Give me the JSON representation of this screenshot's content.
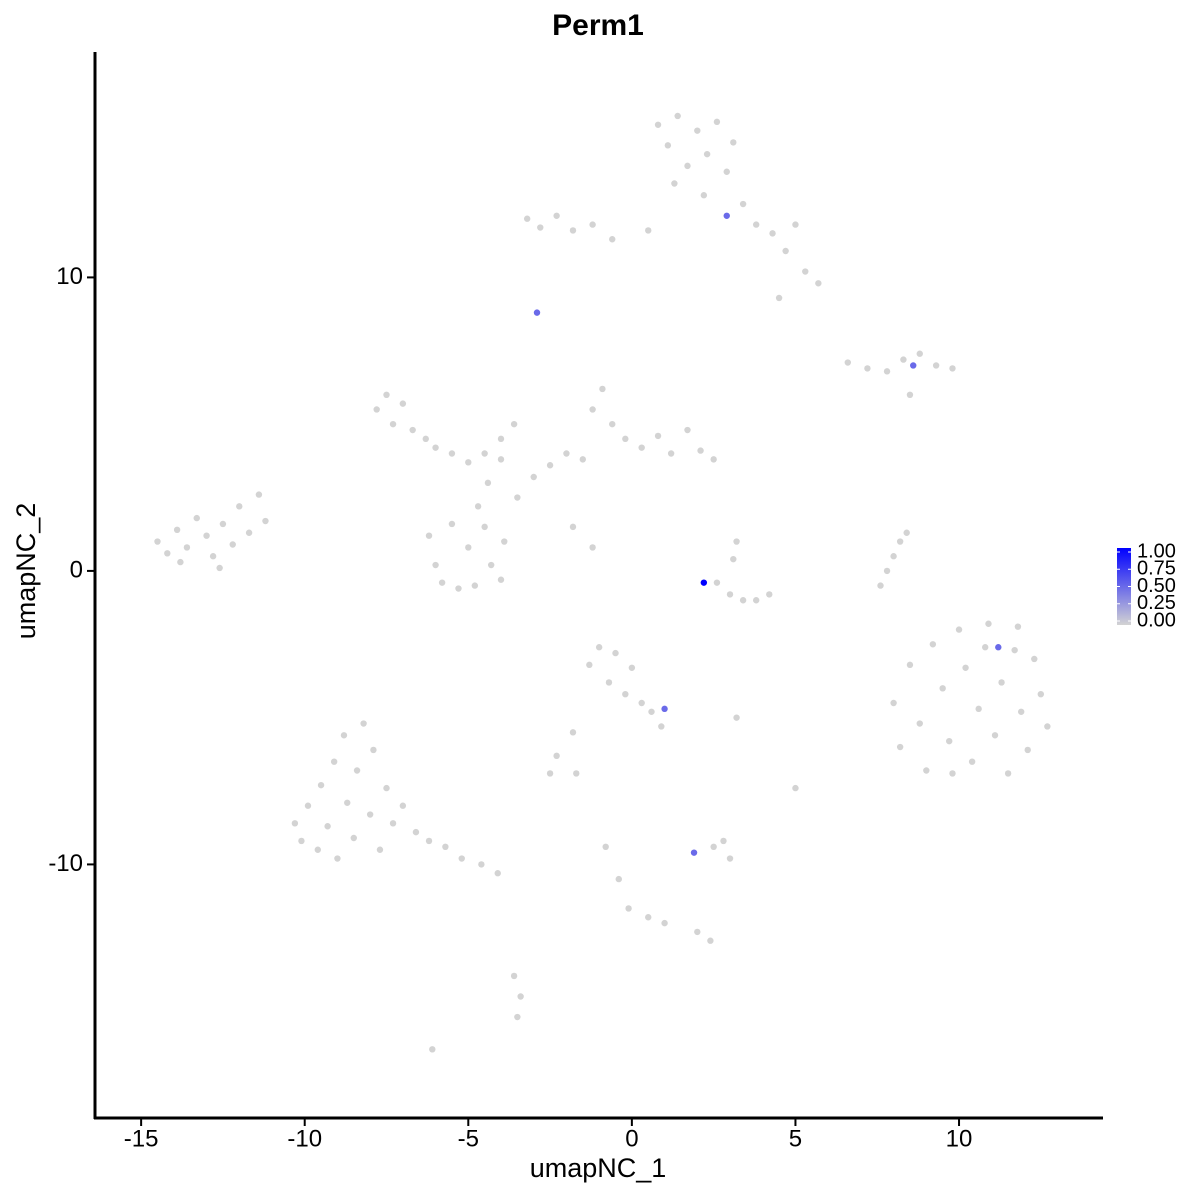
{
  "chart_data": {
    "type": "scatter",
    "title": "Perm1",
    "x_label": "umapNC_1",
    "y_label": "umapNC_2",
    "xlim": [
      -16.41,
      14.37
    ],
    "ylim": [
      -18.64,
      17.68
    ],
    "xticks": [
      -15,
      -10,
      -5,
      0,
      5,
      10
    ],
    "yticks": [
      -10,
      0,
      10
    ],
    "grid": false,
    "color_low": "#d3d3d3",
    "color_high": "#0000ff",
    "colorlim": [
      0,
      1
    ],
    "colorticks": [
      {
        "value": 0,
        "label": "0.00"
      },
      {
        "value": 0.25,
        "label": "0.25"
      },
      {
        "value": 0.5,
        "label": "0.50"
      },
      {
        "value": 0.75,
        "label": "0.75"
      },
      {
        "value": 1,
        "label": "1.00"
      }
    ],
    "legend_position": "right",
    "x": [
      -14.5,
      -14.2,
      -13.9,
      -13.6,
      -13.3,
      -13.0,
      -12.8,
      -12.5,
      -12.2,
      -12.0,
      -11.7,
      -11.4,
      -11.2,
      -13.8,
      -12.6,
      -10.3,
      -10.1,
      -9.9,
      -9.6,
      -9.5,
      -9.3,
      -9.1,
      -9.0,
      -8.8,
      -8.7,
      -8.5,
      -8.4,
      -8.2,
      -8.0,
      -7.9,
      -7.7,
      -7.5,
      -7.3,
      -7.0,
      -6.6,
      -6.2,
      -5.7,
      -5.2,
      -4.6,
      -4.1,
      -6.2,
      -6.0,
      -5.8,
      -5.5,
      -5.3,
      -5.0,
      -4.8,
      -4.5,
      -4.3,
      -4.0,
      -3.9,
      -4.7,
      -4.4,
      -4.0,
      -3.5,
      -7.8,
      -7.5,
      -7.3,
      -7.0,
      -6.7,
      -6.3,
      -6.0,
      -5.5,
      -5.0,
      -4.5,
      -4.0,
      -3.6,
      -3.0,
      -2.5,
      -2.0,
      -1.5,
      -1.2,
      -0.9,
      -0.6,
      -0.2,
      0.3,
      0.8,
      1.2,
      1.7,
      2.1,
      2.5,
      -1.8,
      -1.2,
      0.8,
      1.1,
      1.4,
      1.7,
      2.0,
      2.3,
      2.6,
      2.9,
      3.1,
      1.3,
      2.2,
      3.4,
      3.8,
      4.3,
      4.7,
      5.0,
      5.3,
      5.7,
      4.5,
      0.5,
      -3.2,
      -2.8,
      -2.3,
      -1.8,
      -1.2,
      -0.6,
      6.6,
      7.2,
      7.8,
      8.3,
      8.8,
      9.3,
      9.8,
      8.5,
      8.0,
      8.2,
      8.5,
      8.8,
      9.0,
      9.2,
      9.5,
      9.7,
      10.0,
      10.2,
      10.4,
      10.6,
      10.9,
      11.1,
      11.3,
      11.5,
      11.7,
      11.9,
      12.1,
      12.3,
      12.5,
      12.7,
      10.8,
      9.8,
      11.8,
      2.6,
      3.0,
      3.4,
      3.8,
      4.2,
      3.2,
      3.1,
      7.6,
      7.8,
      8.0,
      8.2,
      8.4,
      -1.3,
      -1.0,
      -0.7,
      -0.5,
      -0.2,
      0.0,
      0.3,
      0.6,
      0.9,
      -1.8,
      -2.3,
      -2.5,
      -1.7,
      2.5,
      3.0,
      2.8,
      -0.8,
      -0.4,
      -0.1,
      0.5,
      2.0,
      2.4,
      -3.6,
      -3.4,
      -3.5,
      -6.1,
      1.0,
      5.0,
      3.2,
      2.9,
      -2.9,
      8.6,
      2.2,
      11.2,
      1.0,
      1.9
    ],
    "y": [
      1.0,
      0.6,
      1.4,
      0.8,
      1.8,
      1.2,
      0.5,
      1.6,
      0.9,
      2.2,
      1.3,
      2.6,
      1.7,
      0.3,
      0.1,
      -8.6,
      -9.2,
      -8.0,
      -9.5,
      -7.3,
      -8.7,
      -6.5,
      -9.8,
      -5.6,
      -7.9,
      -9.1,
      -6.8,
      -5.2,
      -8.3,
      -6.1,
      -9.5,
      -7.4,
      -8.6,
      -8.0,
      -8.9,
      -9.2,
      -9.4,
      -9.8,
      -10.0,
      -10.3,
      1.2,
      0.2,
      -0.4,
      1.6,
      -0.6,
      0.8,
      -0.5,
      1.5,
      0.2,
      -0.3,
      1.0,
      2.2,
      3.0,
      3.8,
      2.5,
      5.5,
      6.0,
      5.0,
      5.7,
      4.8,
      4.5,
      4.2,
      4.0,
      3.7,
      4.0,
      4.5,
      5.0,
      3.2,
      3.6,
      4.0,
      3.8,
      5.5,
      6.2,
      5.0,
      4.5,
      4.2,
      4.6,
      4.0,
      4.8,
      4.1,
      3.8,
      1.5,
      0.8,
      15.2,
      14.5,
      15.5,
      13.8,
      15.0,
      14.2,
      15.3,
      13.6,
      14.6,
      13.2,
      12.8,
      12.5,
      11.8,
      11.5,
      10.9,
      11.8,
      10.2,
      9.8,
      9.3,
      11.6,
      12.0,
      11.7,
      12.1,
      11.6,
      11.8,
      11.3,
      7.1,
      6.9,
      6.8,
      7.2,
      7.4,
      7.0,
      6.9,
      6.0,
      -4.5,
      -6.0,
      -3.2,
      -5.2,
      -6.8,
      -2.5,
      -4.0,
      -5.8,
      -2.0,
      -3.3,
      -6.5,
      -4.7,
      -1.8,
      -5.6,
      -3.8,
      -6.9,
      -2.7,
      -4.8,
      -6.1,
      -3.0,
      -4.2,
      -5.3,
      -2.6,
      -6.9,
      -1.9,
      -0.4,
      -0.8,
      -1.0,
      -1.0,
      -0.8,
      1.0,
      0.4,
      -0.5,
      0.0,
      0.5,
      1.0,
      1.3,
      -3.2,
      -2.6,
      -3.8,
      -2.8,
      -4.2,
      -3.3,
      -4.5,
      -4.8,
      -5.3,
      -5.5,
      -6.3,
      -6.9,
      -6.9,
      -9.4,
      -9.8,
      -9.2,
      -9.4,
      -10.5,
      -11.5,
      -11.8,
      -12.3,
      -12.6,
      -13.8,
      -14.5,
      -15.2,
      -16.3,
      -12.0,
      -7.4,
      -5.0,
      12.1,
      8.8,
      7.0,
      -0.4,
      -2.6,
      -4.7,
      -9.6
    ],
    "values": [
      0,
      0,
      0,
      0,
      0,
      0,
      0,
      0,
      0,
      0,
      0,
      0,
      0,
      0,
      0,
      0,
      0,
      0,
      0,
      0,
      0,
      0,
      0,
      0,
      0,
      0,
      0,
      0,
      0,
      0,
      0,
      0,
      0,
      0,
      0,
      0,
      0,
      0,
      0,
      0,
      0,
      0,
      0,
      0,
      0,
      0,
      0,
      0,
      0,
      0,
      0,
      0,
      0,
      0,
      0,
      0,
      0,
      0,
      0,
      0,
      0,
      0,
      0,
      0,
      0,
      0,
      0,
      0,
      0,
      0,
      0,
      0,
      0,
      0,
      0,
      0,
      0,
      0,
      0,
      0,
      0,
      0,
      0,
      0,
      0,
      0,
      0,
      0,
      0,
      0,
      0,
      0,
      0,
      0,
      0,
      0,
      0,
      0,
      0,
      0,
      0,
      0,
      0,
      0,
      0,
      0,
      0,
      0,
      0,
      0,
      0,
      0,
      0,
      0,
      0,
      0,
      0,
      0,
      0,
      0,
      0,
      0,
      0,
      0,
      0,
      0,
      0,
      0,
      0,
      0,
      0,
      0,
      0,
      0,
      0,
      0,
      0,
      0,
      0,
      0,
      0,
      0,
      0,
      0,
      0,
      0,
      0,
      0,
      0,
      0,
      0,
      0,
      0,
      0,
      0,
      0,
      0,
      0,
      0,
      0,
      0,
      0,
      0,
      0,
      0,
      0,
      0,
      0,
      0,
      0,
      0,
      0,
      0,
      0,
      0,
      0,
      0,
      0,
      0,
      0,
      0,
      0,
      0,
      0.5,
      0.5,
      0.5,
      1.0,
      0.5,
      0.5,
      0.5
    ]
  }
}
